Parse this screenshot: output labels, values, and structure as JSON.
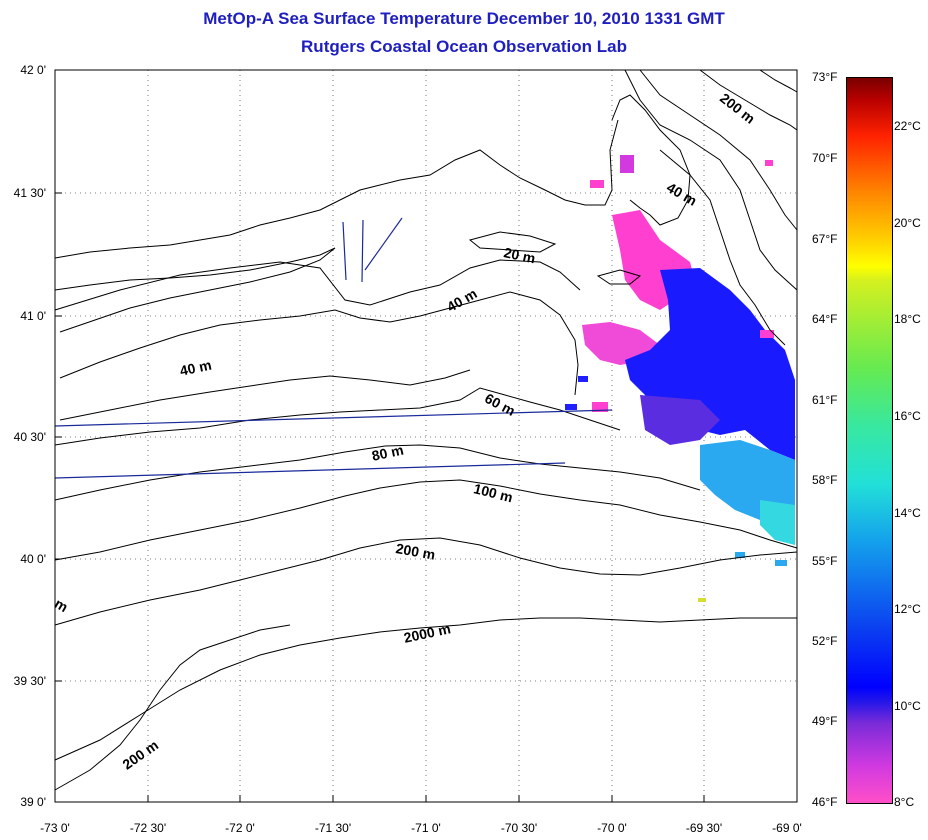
{
  "header": {
    "title": "MetOp-A Sea Surface Temperature December 10, 2010 1331 GMT",
    "subtitle": "Rutgers Coastal Ocean Observation Lab"
  },
  "axes": {
    "latitude_labels": [
      "42 0'",
      "41 30'",
      "41 0'",
      "40 30'",
      "40 0'",
      "39 30'",
      "39 0'"
    ],
    "longitude_labels": [
      "-73 0'",
      "-72 30'",
      "-72 0'",
      "-71 30'",
      "-71 0'",
      "-70 30'",
      "-70 0'",
      "-69 30'",
      "-69 0'"
    ]
  },
  "isobaths": {
    "labels": [
      "200 m",
      "40 m",
      "20 m",
      "40 m",
      "40 m",
      "60 m",
      "80 m",
      "100 m",
      "200 m",
      "2000 m",
      "200 m",
      "m"
    ]
  },
  "colorbar": {
    "fahrenheit_labels": [
      "73°F",
      "70°F",
      "67°F",
      "64°F",
      "61°F",
      "58°F",
      "55°F",
      "52°F",
      "49°F",
      "46°F"
    ],
    "celsius_labels": [
      "22°C",
      "20°C",
      "18°C",
      "16°C",
      "14°C",
      "12°C",
      "10°C",
      "8°C"
    ],
    "range_f": [
      46,
      73
    ],
    "range_c": [
      8,
      23
    ],
    "colors": [
      "#ff4fc8",
      "#7a2bd8",
      "#0000ff",
      "#14a0ec",
      "#22e0d8",
      "#66ea50",
      "#ffff00",
      "#ff8800",
      "#ff2200",
      "#7a0000"
    ]
  }
}
